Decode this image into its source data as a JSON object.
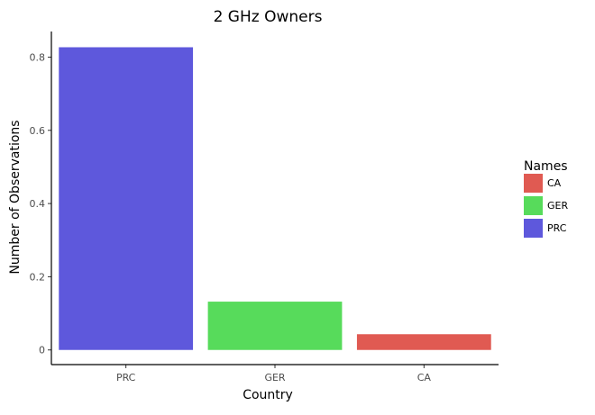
{
  "chart_data": {
    "type": "bar",
    "title": "2 GHz Owners",
    "xlabel": "Country",
    "ylabel": "Number of Observations",
    "categories": [
      "PRC",
      "GER",
      "CA"
    ],
    "values": [
      0.827,
      0.132,
      0.043
    ],
    "ylim": [
      -0.04,
      0.87
    ],
    "yticks": [
      0,
      0.2,
      0.4,
      0.6,
      0.8
    ],
    "ytick_labels": [
      "0",
      "0.2",
      "0.4",
      "0.6",
      "0.8"
    ],
    "grid": false,
    "legend": {
      "title": "Names",
      "placement": "right",
      "items": [
        {
          "label": "CA",
          "color": "#E05A52"
        },
        {
          "label": "GER",
          "color": "#57DB5B"
        },
        {
          "label": "PRC",
          "color": "#5E58DC"
        }
      ]
    },
    "bar_colors": {
      "PRC": "#5E58DC",
      "GER": "#57DB5B",
      "CA": "#E05A52"
    }
  }
}
